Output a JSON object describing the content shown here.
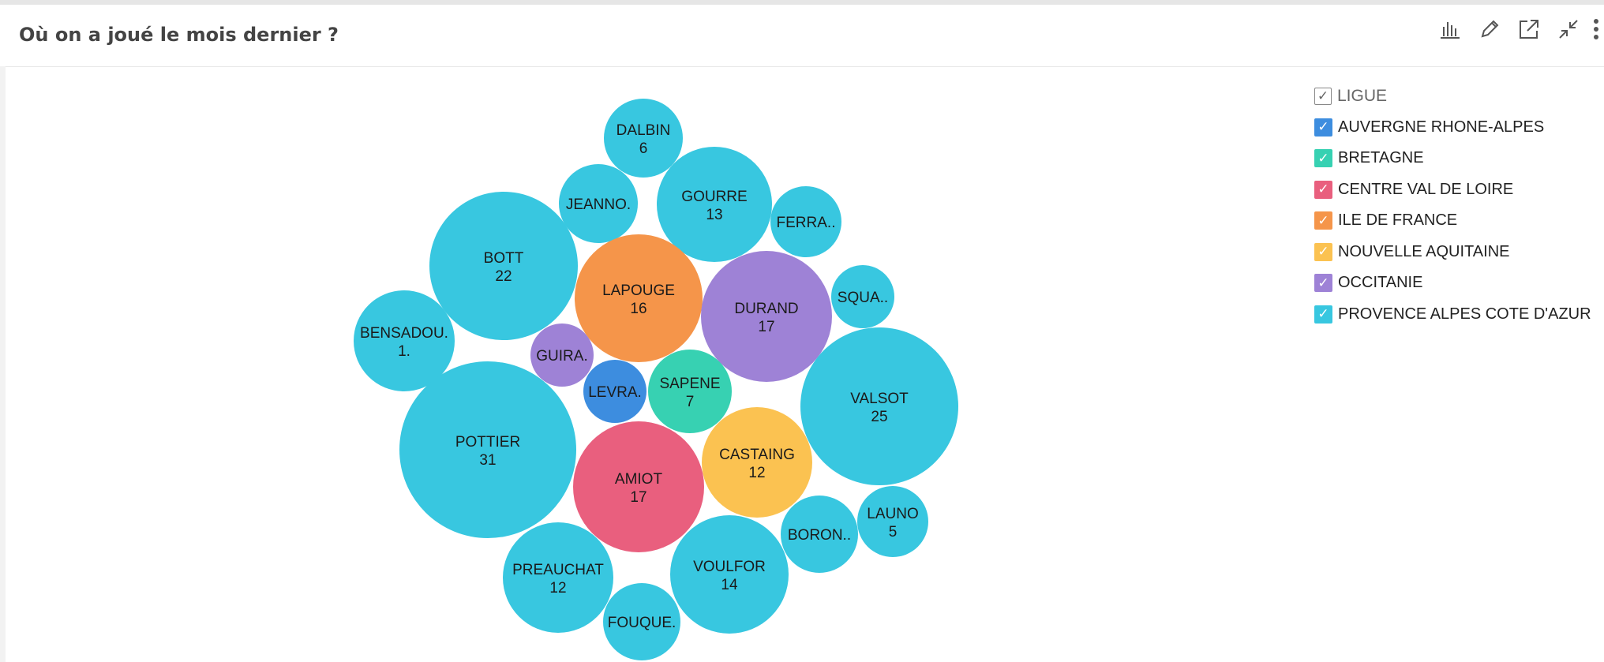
{
  "title": "Où on a joué le mois dernier ?",
  "toolbar": {
    "icons": [
      "bar-chart-icon",
      "edit-icon",
      "open-external-icon",
      "collapse-icon",
      "more-icon"
    ]
  },
  "legend": {
    "title": "LIGUE",
    "items": [
      {
        "label": "AUVERGNE RHONE-ALPES",
        "color": "#3d8ddf"
      },
      {
        "label": "BRETAGNE",
        "color": "#37d1b2"
      },
      {
        "label": "CENTRE VAL DE LOIRE",
        "color": "#e95f7e"
      },
      {
        "label": "ILE DE FRANCE",
        "color": "#f5954a"
      },
      {
        "label": "NOUVELLE AQUITAINE",
        "color": "#fbc251"
      },
      {
        "label": "OCCITANIE",
        "color": "#9e82d6"
      },
      {
        "label": "PROVENCE ALPES COTE D'AZUR",
        "color": "#38c7e0"
      }
    ]
  },
  "chart_data": {
    "type": "bubble",
    "title": "Où on a joué le mois dernier ?",
    "legend_position": "right",
    "series": [
      {
        "name": "DALBIN",
        "value": 6,
        "value_label": "6",
        "ligue": "PROVENCE ALPES COTE D'AZUR"
      },
      {
        "name": "JEANNO.",
        "value": null,
        "value_label": "",
        "ligue": "PROVENCE ALPES COTE D'AZUR"
      },
      {
        "name": "GOURRE",
        "value": 13,
        "value_label": "13",
        "ligue": "PROVENCE ALPES COTE D'AZUR"
      },
      {
        "name": "FERRA..",
        "value": null,
        "value_label": "",
        "ligue": "PROVENCE ALPES COTE D'AZUR"
      },
      {
        "name": "BOTT",
        "value": 22,
        "value_label": "22",
        "ligue": "PROVENCE ALPES COTE D'AZUR"
      },
      {
        "name": "LAPOUGE",
        "value": 16,
        "value_label": "16",
        "ligue": "ILE DE FRANCE"
      },
      {
        "name": "DURAND",
        "value": 17,
        "value_label": "17",
        "ligue": "OCCITANIE"
      },
      {
        "name": "SQUA..",
        "value": null,
        "value_label": "",
        "ligue": "PROVENCE ALPES COTE D'AZUR"
      },
      {
        "name": "BENSADOU.",
        "value": null,
        "value_label": "1.",
        "ligue": "PROVENCE ALPES COTE D'AZUR"
      },
      {
        "name": "GUIRA.",
        "value": null,
        "value_label": "",
        "ligue": "OCCITANIE"
      },
      {
        "name": "LEVRA.",
        "value": null,
        "value_label": "",
        "ligue": "AUVERGNE RHONE-ALPES"
      },
      {
        "name": "SAPENE",
        "value": 7,
        "value_label": "7",
        "ligue": "BRETAGNE"
      },
      {
        "name": "VALSOT",
        "value": 25,
        "value_label": "25",
        "ligue": "PROVENCE ALPES COTE D'AZUR"
      },
      {
        "name": "POTTIER",
        "value": 31,
        "value_label": "31",
        "ligue": "PROVENCE ALPES COTE D'AZUR"
      },
      {
        "name": "CASTAING",
        "value": 12,
        "value_label": "12",
        "ligue": "NOUVELLE AQUITAINE"
      },
      {
        "name": "AMIOT",
        "value": 17,
        "value_label": "17",
        "ligue": "CENTRE VAL DE LOIRE"
      },
      {
        "name": "LAUNO",
        "value": 5,
        "value_label": "5",
        "ligue": "PROVENCE ALPES COTE D'AZUR"
      },
      {
        "name": "BORON..",
        "value": null,
        "value_label": "",
        "ligue": "PROVENCE ALPES COTE D'AZUR"
      },
      {
        "name": "PREAUCHAT",
        "value": 12,
        "value_label": "12",
        "ligue": "PROVENCE ALPES COTE D'AZUR"
      },
      {
        "name": "VOULFOR",
        "value": 14,
        "value_label": "14",
        "ligue": "PROVENCE ALPES COTE D'AZUR"
      },
      {
        "name": "FOUQUE.",
        "value": null,
        "value_label": "",
        "ligue": "PROVENCE ALPES COTE D'AZUR"
      }
    ]
  }
}
